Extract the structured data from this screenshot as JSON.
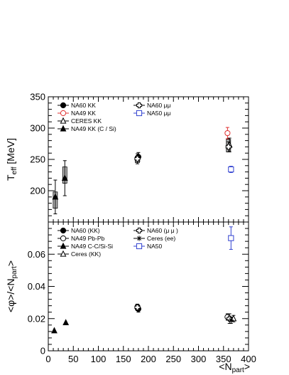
{
  "chart_data": [
    {
      "type": "scatter",
      "ylabel": "T_eff [MeV]",
      "ylim": [
        150,
        350
      ],
      "xlim": [
        0,
        400
      ],
      "yticks": [
        200,
        250,
        300,
        350
      ],
      "legend": {
        "left": [
          {
            "label": "NA60 KK",
            "marker": "filled-circle",
            "color": "#000000"
          },
          {
            "label": "NA49 KK",
            "marker": "open-circle",
            "color": "#e03030"
          },
          {
            "label": "CERES KK",
            "marker": "open-triangle",
            "color": "#000000"
          },
          {
            "label": "NA49 KK (C / Si)",
            "marker": "filled-triangle",
            "color": "#000000"
          }
        ],
        "right": [
          {
            "label": "NA60 μμ",
            "marker": "open-cross",
            "color": "#000000"
          },
          {
            "label": "NA50 μμ",
            "marker": "open-square",
            "color": "#3040d0"
          }
        ]
      },
      "series": [
        {
          "name": "NA60 KK",
          "marker": "filled-circle",
          "color": "#000000",
          "points": [
            {
              "x": 180,
              "y": 254,
              "err": 7
            }
          ]
        },
        {
          "name": "NA49 KK",
          "marker": "open-circle",
          "color": "#e03030",
          "points": [
            {
              "x": 358,
              "y": 292,
              "err": 9
            }
          ]
        },
        {
          "name": "CERES KK",
          "marker": "open-triangle",
          "color": "#000000",
          "points": [
            {
              "x": 362,
              "y": 273,
              "err": 11
            }
          ]
        },
        {
          "name": "NA49 KK (C / Si)",
          "marker": "filled-triangle",
          "color": "#000000",
          "points": [
            {
              "x": 14,
              "y": 190,
              "err": 27
            },
            {
              "x": 33,
              "y": 220,
              "err": 28
            }
          ]
        },
        {
          "name": "NA60 μμ",
          "marker": "open-cross",
          "color": "#000000",
          "points": [
            {
              "x": 178,
              "y": 251,
              "err": 8
            },
            {
              "x": 360,
              "y": 270,
              "err": 8
            }
          ]
        },
        {
          "name": "NA50 μμ",
          "marker": "open-square",
          "color": "#3040d0",
          "points": [
            {
              "x": 365,
              "y": 234,
              "err": 5
            }
          ]
        }
      ],
      "systematic_boxes": [
        {
          "x": 14,
          "y": 185,
          "half_height": 13
        },
        {
          "x": 33,
          "y": 225,
          "half_height": 13
        },
        {
          "x": 178,
          "y": 250,
          "half_height": 5
        },
        {
          "x": 360,
          "y": 272,
          "half_height": 10
        }
      ]
    },
    {
      "type": "scatter",
      "ylabel": "<φ>/<N_part>",
      "xlabel": "<N_part>",
      "ylim": [
        0,
        0.08
      ],
      "xlim": [
        0,
        400
      ],
      "yticks": [
        0,
        0.02,
        0.04,
        0.06
      ],
      "ytick_labels": [
        "0",
        "0.02",
        "0.04",
        "0.06"
      ],
      "xticks": [
        0,
        50,
        100,
        150,
        200,
        250,
        300,
        350,
        400
      ],
      "legend": {
        "left": [
          {
            "label": "NA60 (KK)",
            "marker": "filled-circle",
            "color": "#000000"
          },
          {
            "label": "NA49 Pb-Pb",
            "marker": "open-circle",
            "color": "#000000"
          },
          {
            "label": "NA49 C-C/Si-Si",
            "marker": "filled-triangle",
            "color": "#000000"
          },
          {
            "label": "Ceres (KK)",
            "marker": "open-triangle",
            "color": "#000000"
          }
        ],
        "right": [
          {
            "label": "NA60 (μ μ )",
            "marker": "open-cross",
            "color": "#000000"
          },
          {
            "label": "Ceres (ee)",
            "marker": "star",
            "color": "#000000"
          },
          {
            "label": "NA50",
            "marker": "open-square",
            "color": "#3040d0"
          }
        ]
      },
      "series": [
        {
          "name": "NA60 (KK)",
          "marker": "filled-circle",
          "color": "#000000",
          "points": [
            {
              "x": 180,
              "y": 0.026,
              "err": 0.002
            }
          ]
        },
        {
          "name": "NA49 Pb-Pb",
          "marker": "open-circle",
          "color": "#000000",
          "points": [
            {
              "x": 358,
              "y": 0.021,
              "err": 0.002
            }
          ]
        },
        {
          "name": "NA49 C-C/Si-Si",
          "marker": "filled-triangle",
          "color": "#000000",
          "points": [
            {
              "x": 12,
              "y": 0.0125,
              "err": 0
            },
            {
              "x": 35,
              "y": 0.0175,
              "err": 0
            }
          ]
        },
        {
          "name": "Ceres (KK)",
          "marker": "open-triangle",
          "color": "#000000",
          "points": [
            {
              "x": 370,
              "y": 0.02,
              "err": 0.002
            }
          ]
        },
        {
          "name": "NA60 (μ μ )",
          "marker": "open-cross",
          "color": "#000000",
          "points": [
            {
              "x": 178,
              "y": 0.027,
              "err": 0.002
            },
            {
              "x": 362,
              "y": 0.02,
              "err": 0.003
            }
          ]
        },
        {
          "name": "Ceres (ee)",
          "marker": "star",
          "color": "#000000",
          "points": [
            {
              "x": 365,
              "y": 0.019,
              "err": 0.002
            }
          ]
        },
        {
          "name": "NA50",
          "marker": "open-square",
          "color": "#3040d0",
          "points": [
            {
              "x": 365,
              "y": 0.07,
              "err": 0.007
            }
          ]
        }
      ],
      "systematic_boxes": [
        {
          "x": 178,
          "y": 0.027,
          "half_height": 0.0015
        }
      ]
    }
  ]
}
